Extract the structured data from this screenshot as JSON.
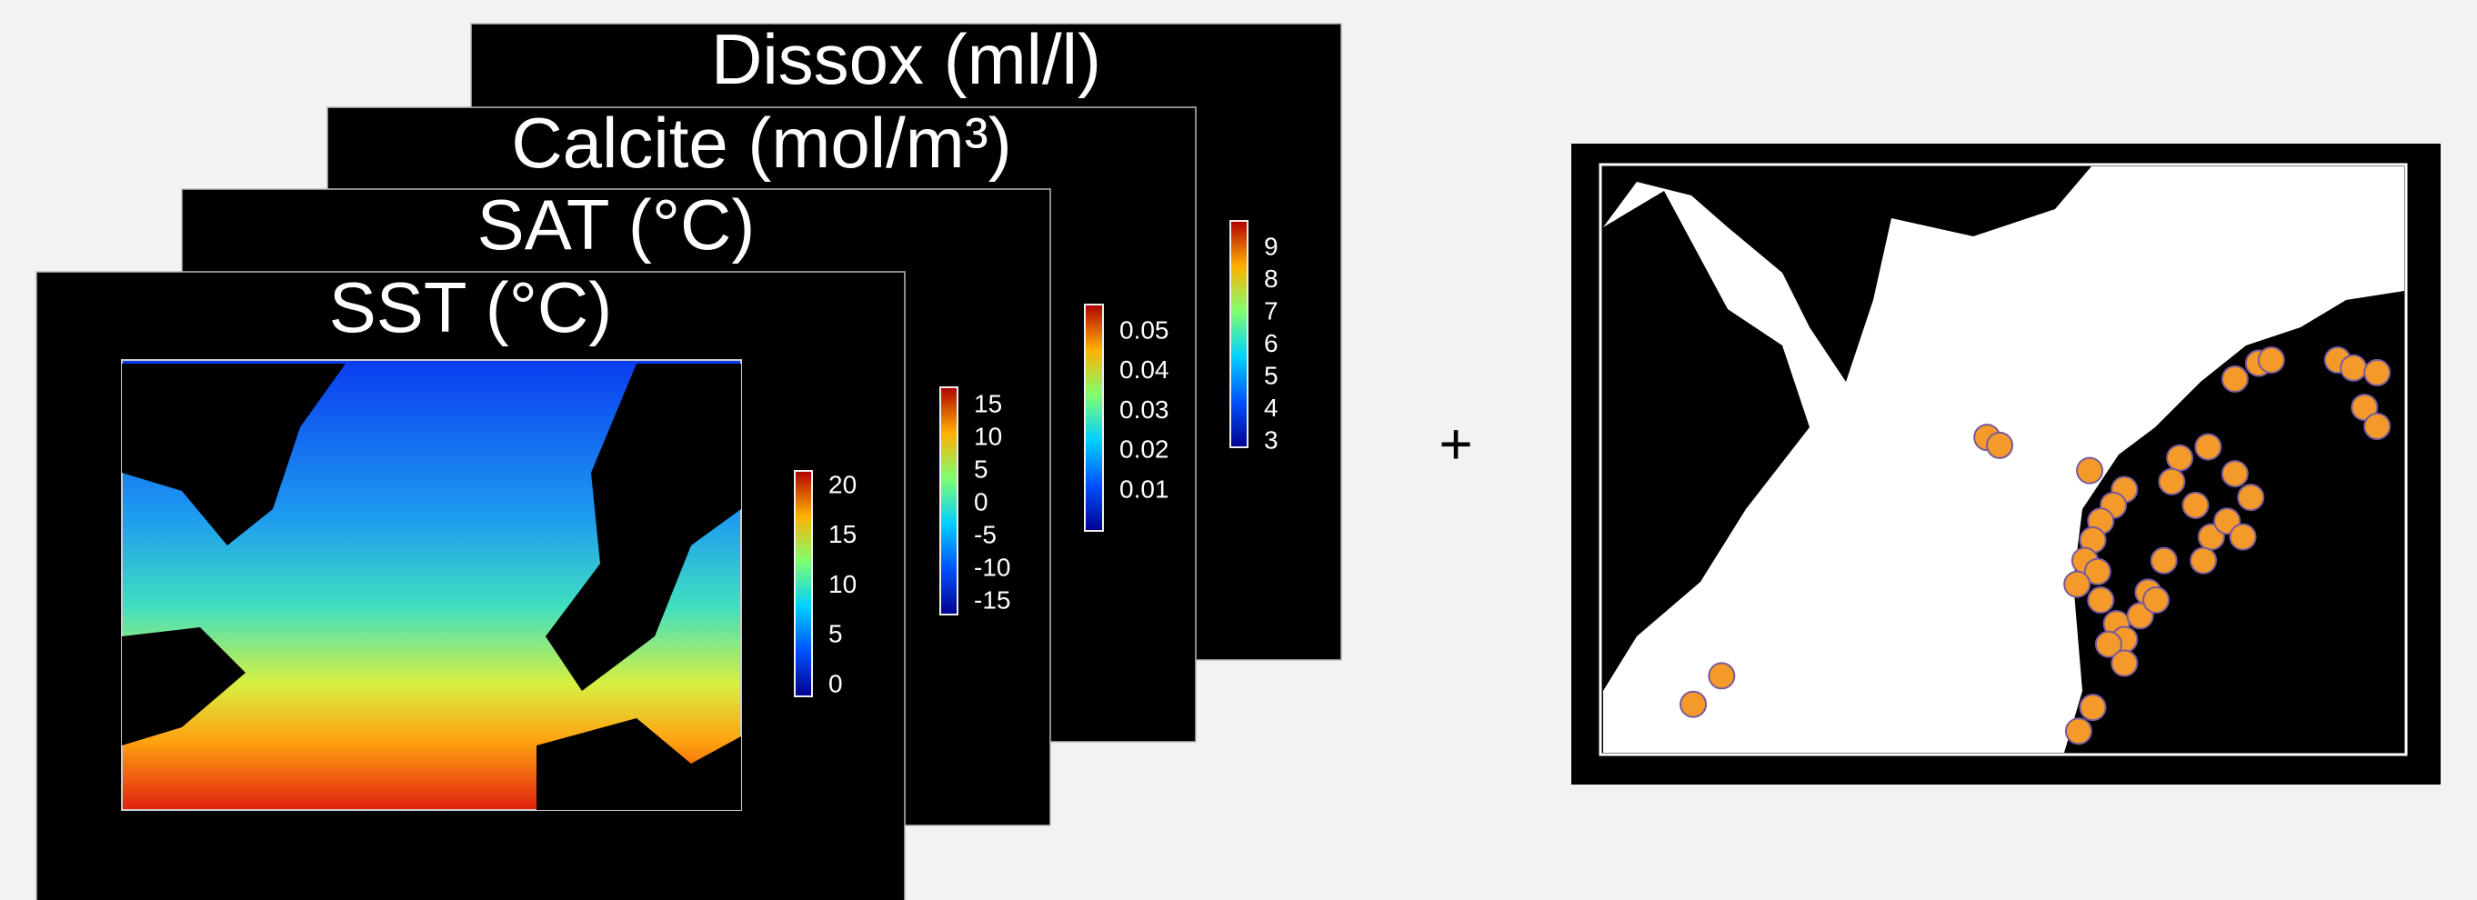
{
  "panels": [
    {
      "title": "Dissox (ml/l)",
      "colorbar_ticks": [
        9,
        8,
        7,
        6,
        5,
        4,
        3
      ]
    },
    {
      "title": "Calcite (mol/m³)",
      "colorbar_ticks": [
        0.05,
        0.04,
        0.03,
        0.02,
        0.01
      ]
    },
    {
      "title": "SAT (°C)",
      "colorbar_ticks": [
        15,
        10,
        5,
        0,
        -5,
        -10,
        -15
      ]
    },
    {
      "title": "SST (°C)",
      "colorbar_ticks": [
        20,
        15,
        10,
        5,
        0
      ]
    }
  ],
  "operator": "+"
}
